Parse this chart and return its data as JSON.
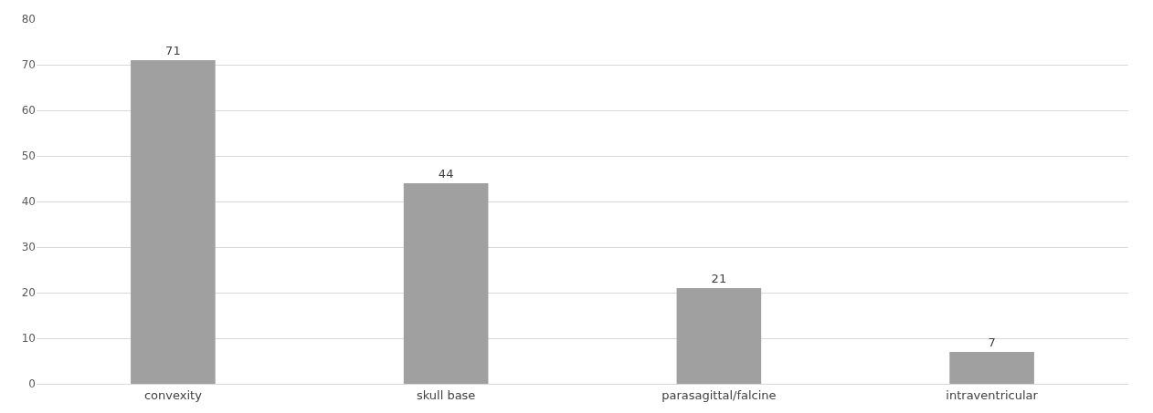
{
  "chart_data": {
    "type": "bar",
    "categories": [
      "convexity",
      "skull base",
      "parasagittal/falcine",
      "intraventricular"
    ],
    "values": [
      71,
      44,
      21,
      7
    ],
    "color": "#a0a0a0",
    "ylim": [
      0,
      80
    ],
    "yticks": [
      0,
      10,
      20,
      30,
      40,
      50,
      60,
      70,
      80
    ],
    "grid": "y",
    "data_labels": true
  }
}
